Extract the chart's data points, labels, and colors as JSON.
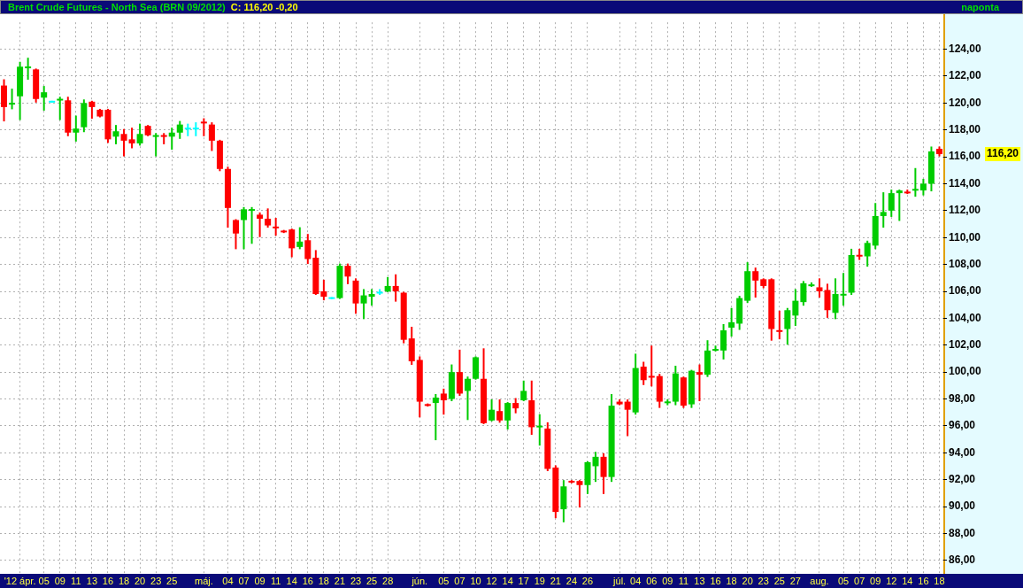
{
  "chart_data": {
    "type": "candlestick",
    "title": "Brent Crude Futures - North Sea (BRN 09/2012)",
    "subtitle": "C: 116,20 -0,20",
    "annotations": [
      "naponta",
      "116,20"
    ],
    "categories": [
      null,
      null,
      "'12 ápr.",
      null,
      null,
      "05",
      null,
      "09",
      null,
      "11",
      null,
      "13",
      null,
      "16",
      null,
      "18",
      null,
      "20",
      null,
      "23",
      null,
      "25",
      null,
      null,
      null,
      "máj.",
      null,
      null,
      "04",
      null,
      "07",
      null,
      "09",
      null,
      "11",
      null,
      "14",
      null,
      "16",
      null,
      "18",
      null,
      "21",
      null,
      "23",
      null,
      "25",
      null,
      "28",
      null,
      null,
      null,
      "jún.",
      null,
      null,
      "05",
      null,
      "07",
      null,
      "10",
      null,
      "12",
      null,
      "14",
      null,
      "17",
      null,
      "19",
      null,
      "21",
      null,
      "24",
      null,
      "26",
      null,
      null,
      null,
      "júl.",
      null,
      "04",
      null,
      "06",
      null,
      "09",
      null,
      "11",
      null,
      "13",
      null,
      "16",
      null,
      "18",
      null,
      "20",
      null,
      "23",
      null,
      "25",
      null,
      "27",
      null,
      null,
      "aug.",
      null,
      null,
      "05",
      null,
      "07",
      null,
      "09",
      null,
      "12",
      null,
      "14",
      null,
      "16",
      null,
      "18"
    ],
    "ohlc": [
      [
        121.3,
        121.7,
        118.7,
        119.7
      ],
      [
        119.9,
        121.0,
        119.6,
        120.0
      ],
      [
        120.5,
        123.0,
        118.8,
        122.7
      ],
      [
        122.6,
        123.3,
        121.8,
        122.7
      ],
      [
        122.5,
        122.5,
        120.1,
        120.3
      ],
      [
        120.4,
        121.2,
        119.5,
        120.8
      ],
      [
        120.1,
        120.1,
        120.1,
        120.1
      ],
      [
        120.2,
        120.4,
        118.8,
        120.3
      ],
      [
        120.2,
        120.4,
        117.6,
        117.8
      ],
      [
        117.8,
        119.0,
        117.2,
        118.1
      ],
      [
        118.2,
        120.2,
        117.9,
        120.0
      ],
      [
        120.1,
        120.1,
        118.9,
        119.7
      ],
      [
        119.5,
        119.5,
        119.0,
        119.0
      ],
      [
        119.5,
        119.5,
        117.1,
        117.3
      ],
      [
        117.5,
        118.3,
        117.0,
        117.9
      ],
      [
        117.7,
        118.0,
        116.1,
        117.2
      ],
      [
        117.3,
        118.1,
        116.7,
        117.0
      ],
      [
        117.0,
        118.4,
        116.9,
        117.7
      ],
      [
        118.3,
        118.3,
        117.6,
        117.6
      ],
      [
        117.5,
        117.7,
        116.1,
        117.6
      ],
      [
        117.6,
        117.7,
        117.0,
        117.5
      ],
      [
        117.5,
        118.1,
        116.6,
        117.8
      ],
      [
        117.8,
        118.6,
        117.4,
        118.4
      ],
      [
        118.1,
        118.4,
        117.6,
        118.1
      ],
      [
        118.1,
        118.5,
        117.6,
        118.1
      ],
      [
        118.6,
        118.8,
        117.6,
        118.5
      ],
      [
        118.4,
        118.5,
        116.5,
        117.2
      ],
      [
        117.2,
        117.2,
        115.0,
        115.1
      ],
      [
        115.1,
        115.2,
        110.8,
        112.2
      ],
      [
        111.3,
        111.3,
        109.2,
        110.3
      ],
      [
        111.3,
        112.2,
        109.2,
        112.1
      ],
      [
        112.0,
        112.2,
        109.6,
        112.1
      ],
      [
        111.7,
        111.8,
        110.1,
        111.4
      ],
      [
        111.4,
        112.1,
        110.8,
        110.9
      ],
      [
        110.8,
        111.4,
        110.2,
        110.7
      ],
      [
        110.5,
        110.5,
        110.4,
        110.4
      ],
      [
        110.6,
        110.6,
        108.6,
        109.2
      ],
      [
        109.3,
        110.7,
        109.2,
        109.7
      ],
      [
        109.8,
        110.2,
        108.1,
        108.4
      ],
      [
        108.5,
        109.0,
        105.8,
        105.8
      ],
      [
        106.0,
        106.8,
        105.4,
        105.6
      ],
      [
        105.5,
        105.5,
        105.5,
        105.5
      ],
      [
        105.5,
        108.0,
        105.5,
        107.9
      ],
      [
        107.9,
        108.0,
        106.6,
        107.1
      ],
      [
        106.8,
        106.9,
        104.4,
        105.1
      ],
      [
        105.1,
        106.1,
        104.0,
        105.7
      ],
      [
        105.6,
        106.1,
        105.0,
        105.8
      ],
      [
        105.9,
        106.1,
        105.8,
        105.9
      ],
      [
        106.0,
        107.0,
        106.0,
        106.4
      ],
      [
        106.4,
        107.2,
        105.3,
        106.0
      ],
      [
        105.9,
        105.9,
        102.2,
        102.4
      ],
      [
        102.5,
        103.3,
        100.6,
        100.8
      ],
      [
        100.9,
        101.1,
        96.7,
        97.8
      ],
      [
        97.6,
        97.6,
        97.5,
        97.5
      ],
      [
        97.7,
        98.3,
        95.0,
        98.1
      ],
      [
        98.4,
        98.7,
        96.9,
        97.9
      ],
      [
        98.0,
        100.5,
        97.9,
        100.0
      ],
      [
        100.0,
        101.6,
        98.3,
        98.4
      ],
      [
        98.6,
        99.6,
        96.5,
        99.5
      ],
      [
        99.5,
        101.1,
        99.5,
        101.1
      ],
      [
        99.5,
        101.7,
        96.2,
        96.2
      ],
      [
        96.4,
        97.9,
        96.4,
        97.2
      ],
      [
        97.1,
        97.9,
        96.3,
        96.4
      ],
      [
        96.4,
        97.7,
        95.8,
        97.7
      ],
      [
        97.7,
        98.0,
        97.0,
        97.3
      ],
      [
        97.9,
        99.3,
        97.9,
        98.6
      ],
      [
        97.9,
        99.3,
        95.4,
        95.9
      ],
      [
        95.9,
        96.8,
        94.6,
        96.0
      ],
      [
        95.8,
        96.2,
        92.7,
        92.8
      ],
      [
        92.9,
        93.0,
        89.2,
        89.6
      ],
      [
        89.8,
        91.9,
        88.9,
        91.5
      ],
      [
        91.9,
        91.9,
        91.8,
        91.8
      ],
      [
        91.9,
        91.9,
        90.0,
        91.6
      ],
      [
        91.6,
        93.3,
        91.0,
        93.3
      ],
      [
        93.0,
        94.0,
        91.9,
        93.7
      ],
      [
        93.7,
        93.9,
        91.0,
        92.2
      ],
      [
        92.2,
        98.3,
        91.9,
        97.5
      ],
      [
        97.8,
        97.9,
        97.6,
        97.6
      ],
      [
        97.8,
        97.9,
        95.3,
        97.2
      ],
      [
        97.0,
        101.3,
        96.9,
        100.3
      ],
      [
        100.4,
        100.7,
        99.1,
        99.4
      ],
      [
        99.7,
        101.9,
        99.0,
        99.6
      ],
      [
        99.7,
        99.8,
        97.4,
        97.8
      ],
      [
        97.7,
        97.9,
        97.6,
        97.8
      ],
      [
        97.8,
        100.4,
        97.6,
        99.9
      ],
      [
        99.6,
        99.6,
        97.4,
        97.5
      ],
      [
        97.6,
        100.1,
        97.4,
        100.1
      ],
      [
        100.0,
        100.5,
        97.9,
        99.8
      ],
      [
        99.8,
        102.3,
        99.7,
        101.6
      ],
      [
        101.6,
        101.9,
        101.6,
        101.7
      ],
      [
        101.6,
        103.5,
        101.0,
        103.1
      ],
      [
        103.3,
        104.7,
        102.7,
        103.7
      ],
      [
        103.6,
        105.6,
        103.2,
        105.5
      ],
      [
        105.3,
        108.1,
        105.2,
        107.5
      ],
      [
        107.5,
        107.7,
        105.6,
        106.8
      ],
      [
        106.9,
        106.9,
        106.3,
        106.4
      ],
      [
        106.9,
        106.9,
        102.4,
        103.2
      ],
      [
        103.1,
        104.5,
        102.5,
        103.0
      ],
      [
        103.2,
        104.7,
        102.1,
        104.6
      ],
      [
        104.2,
        106.1,
        103.5,
        105.3
      ],
      [
        105.2,
        106.7,
        105.0,
        106.6
      ],
      [
        106.4,
        106.6,
        106.4,
        106.5
      ],
      [
        106.3,
        106.9,
        105.6,
        106.0
      ],
      [
        106.1,
        106.5,
        104.1,
        104.6
      ],
      [
        104.4,
        106.9,
        104.0,
        105.8
      ],
      [
        105.7,
        107.3,
        105.0,
        105.8
      ],
      [
        105.9,
        109.1,
        105.8,
        108.7
      ],
      [
        108.7,
        109.1,
        108.4,
        108.6
      ],
      [
        108.6,
        109.7,
        107.9,
        109.6
      ],
      [
        109.4,
        112.5,
        109.2,
        111.6
      ],
      [
        111.6,
        113.3,
        110.8,
        111.9
      ],
      [
        112.0,
        113.5,
        111.6,
        113.3
      ],
      [
        113.3,
        113.5,
        111.3,
        113.5
      ],
      [
        113.4,
        113.5,
        113.3,
        113.3
      ],
      [
        113.5,
        115.1,
        113.1,
        113.6
      ],
      [
        113.5,
        114.3,
        113.2,
        114.0
      ],
      [
        114.0,
        116.7,
        113.5,
        116.4
      ],
      [
        116.6,
        116.7,
        116.1,
        116.2
      ]
    ],
    "colors": [
      "#ff0000",
      "#00cc00",
      "#00cc00",
      "#00cc00",
      "#ff0000",
      "#00cc00",
      "#00ffff",
      "#00cc00",
      "#ff0000",
      "#00cc00",
      "#00cc00",
      "#ff0000",
      "#ff0000",
      "#ff0000",
      "#00cc00",
      "#ff0000",
      "#ff0000",
      "#00cc00",
      "#ff0000",
      "#00cc00",
      "#ff0000",
      "#00cc00",
      "#00cc00",
      "#00ffff",
      "#00ffff",
      "#ff0000",
      "#ff0000",
      "#ff0000",
      "#ff0000",
      "#ff0000",
      "#00cc00",
      "#00cc00",
      "#ff0000",
      "#ff0000",
      "#ff0000",
      "#ff0000",
      "#ff0000",
      "#00cc00",
      "#ff0000",
      "#ff0000",
      "#ff0000",
      "#00ffff",
      "#00cc00",
      "#ff0000",
      "#ff0000",
      "#00cc00",
      "#00cc00",
      "#00ffff",
      "#00cc00",
      "#ff0000",
      "#ff0000",
      "#ff0000",
      "#ff0000",
      "#ff0000",
      "#00cc00",
      "#ff0000",
      "#00cc00",
      "#ff0000",
      "#00cc00",
      "#00cc00",
      "#ff0000",
      "#00cc00",
      "#ff0000",
      "#00cc00",
      "#ff0000",
      "#00cc00",
      "#ff0000",
      "#00cc00",
      "#ff0000",
      "#ff0000",
      "#00cc00",
      "#ff0000",
      "#ff0000",
      "#00cc00",
      "#00cc00",
      "#ff0000",
      "#00cc00",
      "#ff0000",
      "#ff0000",
      "#00cc00",
      "#ff0000",
      "#ff0000",
      "#ff0000",
      "#00cc00",
      "#00cc00",
      "#ff0000",
      "#00cc00",
      "#ff0000",
      "#00cc00",
      "#00cc00",
      "#00cc00",
      "#00cc00",
      "#00cc00",
      "#00cc00",
      "#ff0000",
      "#ff0000",
      "#ff0000",
      "#ff0000",
      "#00cc00",
      "#00cc00",
      "#00cc00",
      "#00cc00",
      "#ff0000",
      "#ff0000",
      "#00cc00",
      "#00cc00",
      "#00cc00",
      "#ff0000",
      "#00cc00",
      "#00cc00",
      "#00cc00",
      "#00cc00",
      "#00cc00",
      "#ff0000",
      "#00cc00",
      "#00cc00",
      "#00cc00",
      "#ff0000"
    ],
    "ylim": [
      85,
      126
    ],
    "yticks": [
      {
        "value": 86,
        "label": "86,00"
      },
      {
        "value": 88,
        "label": "88,00"
      },
      {
        "value": 90,
        "label": "90,00"
      },
      {
        "value": 92,
        "label": "92,00"
      },
      {
        "value": 94,
        "label": "94,00"
      },
      {
        "value": 96,
        "label": "96,00"
      },
      {
        "value": 98,
        "label": "98,00"
      },
      {
        "value": 100,
        "label": "100,00"
      },
      {
        "value": 102,
        "label": "102,00"
      },
      {
        "value": 104,
        "label": "104,00"
      },
      {
        "value": 106,
        "label": "106,00"
      },
      {
        "value": 108,
        "label": "108,00"
      },
      {
        "value": 110,
        "label": "110,00"
      },
      {
        "value": 112,
        "label": "112,00"
      },
      {
        "value": 114,
        "label": "114,00"
      },
      {
        "value": 116,
        "label": "116,00"
      },
      {
        "value": 118,
        "label": "118,00"
      },
      {
        "value": 120,
        "label": "120,00"
      },
      {
        "value": 122,
        "label": "122,00"
      },
      {
        "value": 124,
        "label": "124,00"
      }
    ],
    "grid": true,
    "legend": false
  }
}
